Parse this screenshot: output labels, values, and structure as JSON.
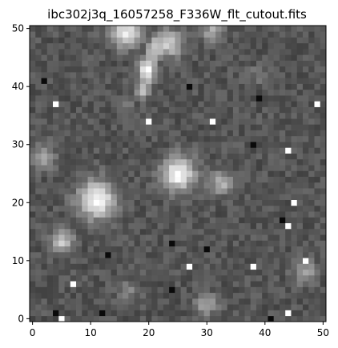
{
  "chart_data": {
    "type": "heatmap",
    "title": "ibc302j3q_16057258_F336W_flt_cutout.fits",
    "colormap": "gray",
    "xlim": [
      -0.5,
      50.5
    ],
    "ylim": [
      -0.5,
      50.5
    ],
    "origin": "lower",
    "x_ticks": [
      0,
      10,
      20,
      30,
      40,
      50
    ],
    "y_ticks": [
      0,
      10,
      20,
      30,
      40,
      50
    ],
    "x_tick_labels": [
      "0",
      "10",
      "20",
      "30",
      "40",
      "50"
    ],
    "y_tick_labels": [
      "0",
      "10",
      "20",
      "30",
      "40",
      "50"
    ],
    "background_level": 0.33,
    "sources": [
      {
        "x": 16,
        "y": 49.5,
        "sigma": 1.8,
        "peak": 0.6
      },
      {
        "x": 23.5,
        "y": 47.5,
        "sigma": 1.6,
        "peak": 0.5
      },
      {
        "x": 19.5,
        "y": 43,
        "sigma": 1.0,
        "peak": 0.4
      },
      {
        "x": 31,
        "y": 49.5,
        "sigma": 1.2,
        "peak": 0.35
      },
      {
        "x": 2,
        "y": 28,
        "sigma": 1.3,
        "peak": 0.35
      },
      {
        "x": 25,
        "y": 25,
        "sigma": 2.0,
        "peak": 0.67
      },
      {
        "x": 32.5,
        "y": 23.5,
        "sigma": 1.4,
        "peak": 0.4
      },
      {
        "x": 11,
        "y": 20.5,
        "sigma": 2.2,
        "peak": 0.67
      },
      {
        "x": 5,
        "y": 13.5,
        "sigma": 1.4,
        "peak": 0.45
      },
      {
        "x": 47,
        "y": 8,
        "sigma": 1.3,
        "peak": 0.35
      },
      {
        "x": 30,
        "y": 2.5,
        "sigma": 1.3,
        "peak": 0.3
      },
      {
        "x": 16.5,
        "y": 5,
        "sigma": 1.2,
        "peak": 0.2
      },
      {
        "x": 39,
        "y": 42,
        "sigma": 1.1,
        "peak": 0.15
      },
      {
        "x": 16,
        "y": 37,
        "sigma": 1.0,
        "peak": 0.12
      }
    ],
    "streak": {
      "x0": 19,
      "y0": 39,
      "x1": 21,
      "y1": 47,
      "width": 0.8,
      "peak": 0.35
    },
    "hot_pixels": [
      [
        4,
        37
      ],
      [
        20,
        34
      ],
      [
        31,
        34
      ],
      [
        49,
        37
      ],
      [
        44,
        29
      ],
      [
        45,
        20
      ],
      [
        44,
        16
      ],
      [
        27,
        9
      ],
      [
        38,
        9
      ],
      [
        7,
        6
      ],
      [
        47,
        10
      ],
      [
        44,
        1
      ],
      [
        5,
        0
      ]
    ],
    "dark_pixels": [
      [
        2,
        41
      ],
      [
        27,
        40
      ],
      [
        39,
        38
      ],
      [
        38,
        30
      ],
      [
        24,
        13
      ],
      [
        30,
        12
      ],
      [
        13,
        11
      ],
      [
        24,
        5
      ],
      [
        4,
        1
      ],
      [
        12,
        1
      ],
      [
        41,
        0
      ],
      [
        43,
        17
      ]
    ]
  }
}
